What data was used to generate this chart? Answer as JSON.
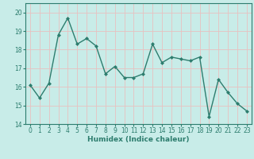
{
  "x": [
    0,
    1,
    2,
    3,
    4,
    5,
    6,
    7,
    8,
    9,
    10,
    11,
    12,
    13,
    14,
    15,
    16,
    17,
    18,
    19,
    20,
    21,
    22,
    23
  ],
  "y": [
    16.1,
    15.4,
    16.2,
    18.8,
    19.7,
    18.3,
    18.6,
    18.2,
    16.7,
    17.1,
    16.5,
    16.5,
    16.7,
    18.3,
    17.3,
    17.6,
    17.5,
    17.4,
    17.6,
    14.4,
    16.4,
    15.7,
    15.1,
    14.7
  ],
  "line_color": "#2d7d6e",
  "marker": "D",
  "marker_size": 2,
  "line_width": 1.0,
  "bg_color": "#c8ece8",
  "grid_color": "#e8c0c0",
  "xlabel": "Humidex (Indice chaleur)",
  "ylim": [
    14,
    20.5
  ],
  "xlim": [
    -0.5,
    23.5
  ],
  "yticks": [
    14,
    15,
    16,
    17,
    18,
    19,
    20
  ],
  "xticks": [
    0,
    1,
    2,
    3,
    4,
    5,
    6,
    7,
    8,
    9,
    10,
    11,
    12,
    13,
    14,
    15,
    16,
    17,
    18,
    19,
    20,
    21,
    22,
    23
  ],
  "xlabel_fontsize": 6.5,
  "tick_fontsize": 5.5
}
